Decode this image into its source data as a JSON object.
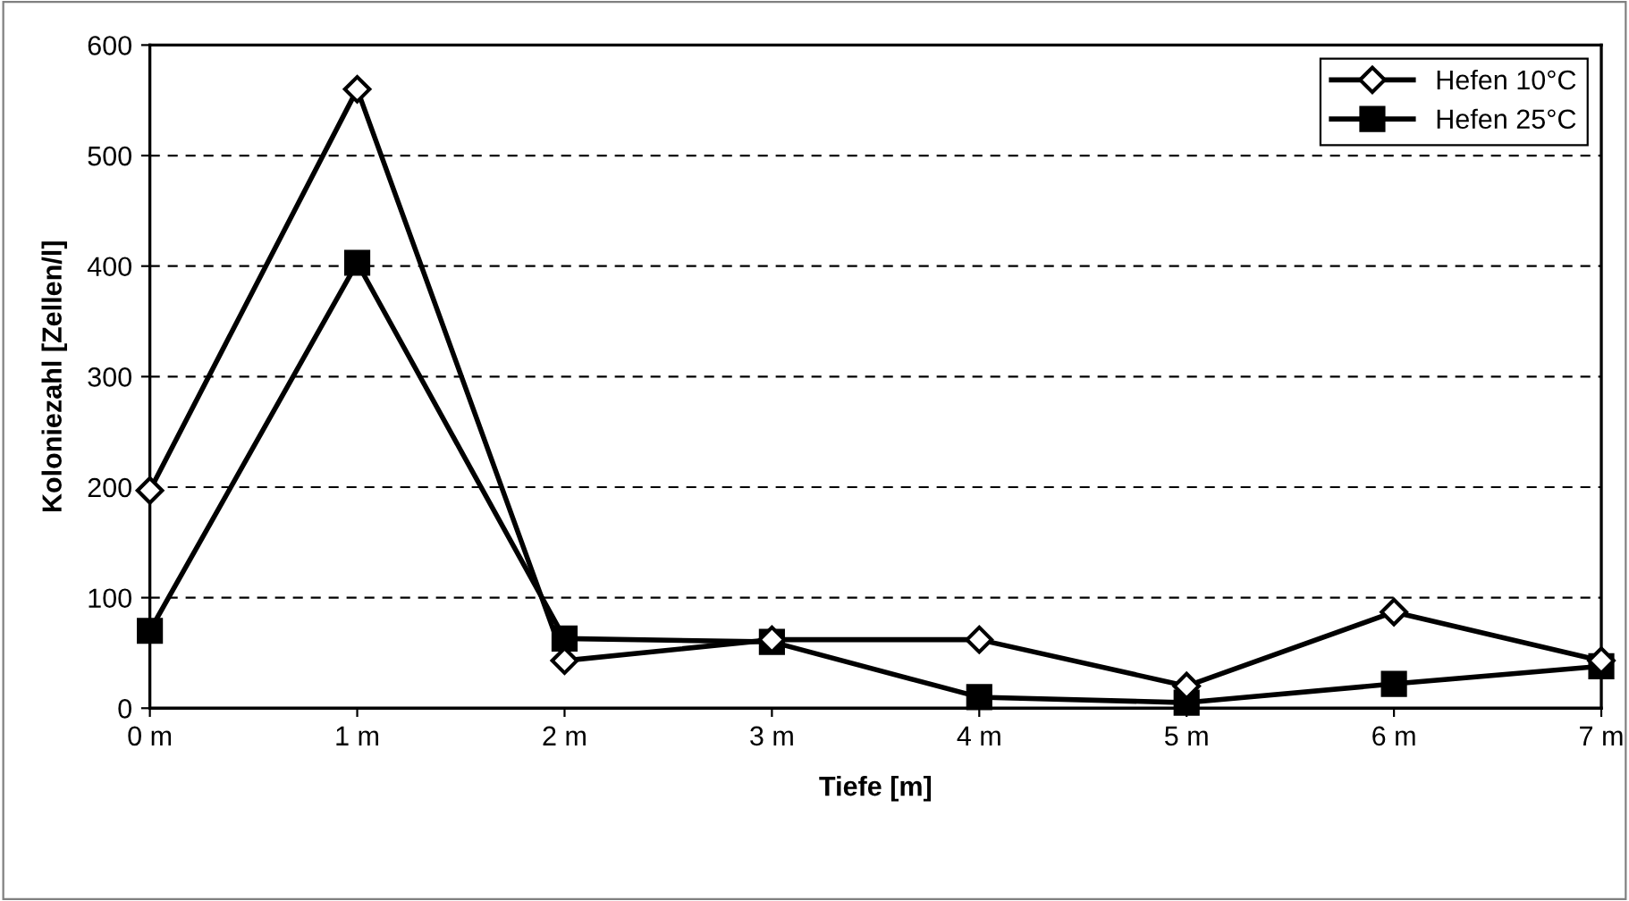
{
  "chart_data": {
    "type": "line",
    "xlabel": "Tiefe [m]",
    "ylabel": "Koloniezahl [Zellen/l]",
    "categories": [
      "0 m",
      "1 m",
      "2 m",
      "3 m",
      "4 m",
      "5 m",
      "6 m",
      "7 m"
    ],
    "series": [
      {
        "name": "Hefen 10°C",
        "color": "#000000",
        "marker": "diamond",
        "values": [
          197,
          560,
          43,
          62,
          62,
          20,
          87,
          43
        ]
      },
      {
        "name": "Hefen 25°C",
        "color": "#000000",
        "marker": "square",
        "values": [
          70,
          403,
          63,
          60,
          10,
          5,
          22,
          38
        ]
      }
    ],
    "ylim": [
      0,
      600
    ],
    "yticks": [
      0,
      100,
      200,
      300,
      400,
      500,
      600
    ],
    "grid": "y",
    "legend": "top right",
    "line_style": "solid"
  }
}
